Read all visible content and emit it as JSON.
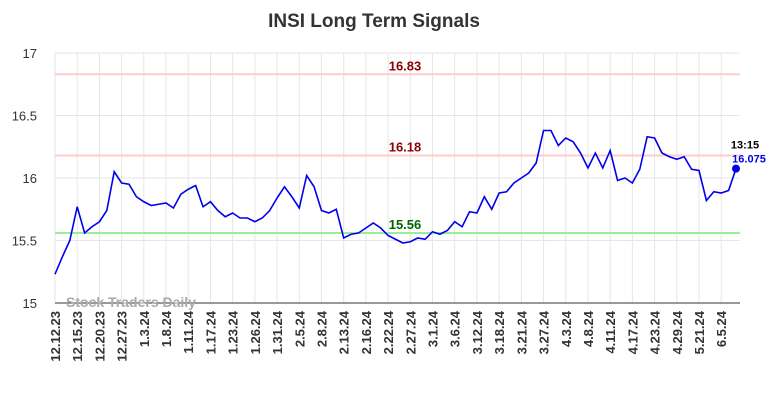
{
  "chart_data": {
    "type": "line",
    "title": "INSI Long Term Signals",
    "watermark": "Stock Traders Daily",
    "categories": [
      "12.12.23",
      null,
      null,
      "12.15.23",
      null,
      null,
      "12.20.23",
      null,
      null,
      "12.27.23",
      null,
      null,
      "1.3.24",
      null,
      null,
      "1.8.24",
      null,
      null,
      "1.11.24",
      null,
      null,
      "1.17.24",
      null,
      null,
      "1.23.24",
      null,
      null,
      "1.26.24",
      null,
      null,
      "1.31.24",
      null,
      null,
      "2.5.24",
      null,
      null,
      "2.8.24",
      null,
      null,
      "2.13.24",
      null,
      null,
      "2.16.24",
      null,
      null,
      "2.22.24",
      null,
      null,
      "2.27.24",
      null,
      null,
      "3.1.24",
      null,
      null,
      "3.6.24",
      null,
      null,
      "3.12.24",
      null,
      null,
      "3.18.24",
      null,
      null,
      "3.21.24",
      null,
      null,
      "3.27.24",
      null,
      null,
      "4.3.24",
      null,
      null,
      "4.8.24",
      null,
      null,
      "4.11.24",
      null,
      null,
      "4.17.24",
      null,
      null,
      "4.23.24",
      null,
      null,
      "4.29.24",
      null,
      null,
      "5.21.24",
      null,
      null,
      "6.5.24",
      null,
      null
    ],
    "series": [
      {
        "color": "#0000ee",
        "values": [
          15.23,
          15.37,
          15.5,
          15.77,
          15.56,
          15.61,
          15.65,
          15.74,
          16.05,
          15.96,
          15.95,
          15.85,
          15.81,
          15.78,
          15.79,
          15.8,
          15.76,
          15.87,
          15.91,
          15.94,
          15.77,
          15.81,
          15.74,
          15.69,
          15.72,
          15.68,
          15.68,
          15.65,
          15.68,
          15.74,
          15.84,
          15.93,
          15.85,
          15.76,
          16.02,
          15.93,
          15.74,
          15.72,
          15.75,
          15.52,
          15.55,
          15.56,
          15.6,
          15.64,
          15.6,
          15.54,
          15.51,
          15.48,
          15.49,
          15.52,
          15.51,
          15.57,
          15.55,
          15.58,
          15.65,
          15.61,
          15.73,
          15.72,
          15.85,
          15.75,
          15.88,
          15.89,
          15.96,
          16.0,
          16.04,
          16.12,
          16.38,
          16.38,
          16.26,
          16.32,
          16.29,
          16.2,
          16.08,
          16.2,
          16.08,
          16.22,
          15.98,
          16.0,
          15.96,
          16.07,
          16.33,
          16.32,
          16.2,
          16.17,
          16.15,
          16.17,
          16.07,
          16.06,
          15.82,
          15.89,
          15.88,
          15.9,
          16.075
        ]
      }
    ],
    "last_time": "13:15",
    "hlines": [
      {
        "value": 16.83,
        "color": "#ffcccc",
        "text_color": "#8b0000"
      },
      {
        "value": 16.18,
        "color": "#ffcccc",
        "text_color": "#8b0000"
      },
      {
        "value": 15.56,
        "color": "#99ee99",
        "text_color": "#006400"
      }
    ],
    "ylim": [
      15,
      17
    ],
    "yticks": [
      15,
      15.5,
      16,
      16.5,
      17
    ],
    "grid": true
  }
}
